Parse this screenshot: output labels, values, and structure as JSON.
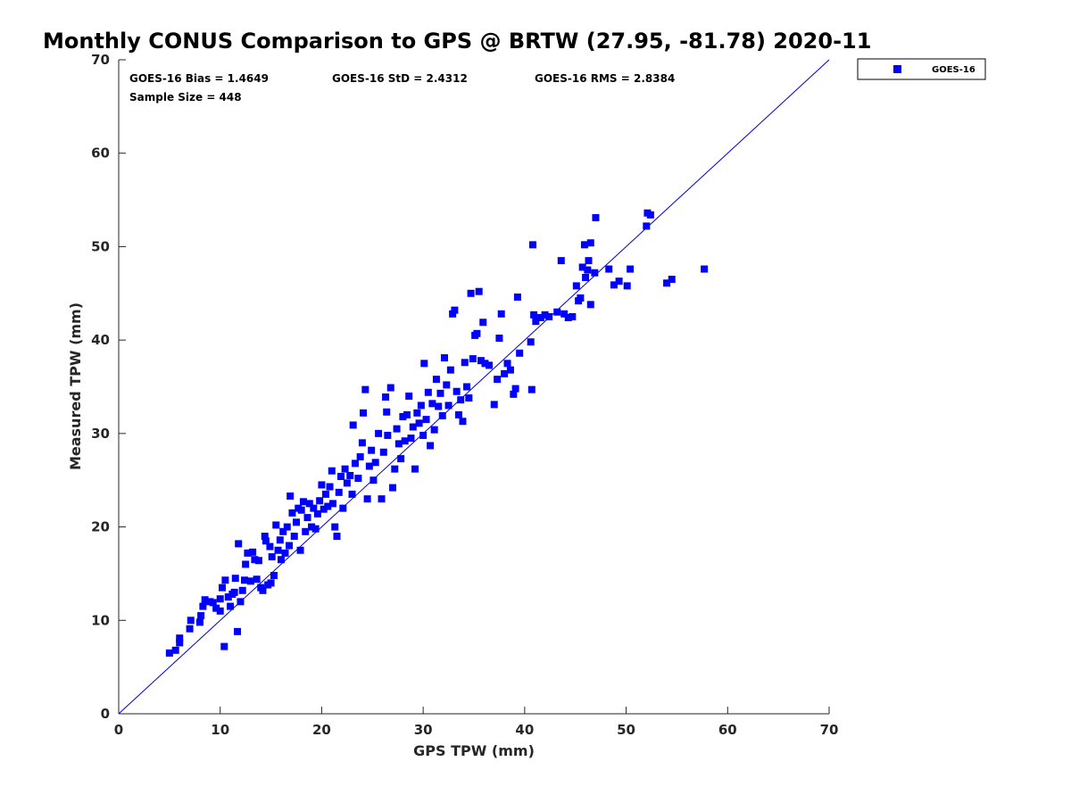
{
  "chart_data": {
    "type": "scatter",
    "title": "Monthly CONUS Comparison to GPS @ BRTW (27.95, -81.78) 2020-11",
    "xlabel": "GPS TPW (mm)",
    "ylabel": "Measured TPW (mm)",
    "xlim": [
      0,
      70
    ],
    "ylim": [
      0,
      70
    ],
    "xticks": [
      "0",
      "10",
      "20",
      "30",
      "40",
      "50",
      "60",
      "70"
    ],
    "yticks": [
      "0",
      "10",
      "20",
      "30",
      "40",
      "50",
      "60",
      "70"
    ],
    "grid": false,
    "legend_position": "outside-top-right",
    "reference_line": {
      "type": "one-to-one",
      "from": [
        0,
        0
      ],
      "to": [
        70,
        70
      ],
      "color": "#0000cc"
    },
    "stats": {
      "bias": "GOES-16 Bias = 1.4649",
      "std": "GOES-16 StD = 2.4312",
      "rms": "GOES-16 RMS = 2.8384",
      "sample_size": "Sample Size = 448"
    },
    "series": [
      {
        "name": "GOES-16",
        "color": "#0000ff",
        "marker": "square",
        "points": [
          [
            5.0,
            6.5
          ],
          [
            5.6,
            6.8
          ],
          [
            6.0,
            7.6
          ],
          [
            6.0,
            8.1
          ],
          [
            7.0,
            9.1
          ],
          [
            7.1,
            10.0
          ],
          [
            8.0,
            9.8
          ],
          [
            8.1,
            10.5
          ],
          [
            8.3,
            11.5
          ],
          [
            8.5,
            12.2
          ],
          [
            9.0,
            12.0
          ],
          [
            9.3,
            11.9
          ],
          [
            9.6,
            11.3
          ],
          [
            10.0,
            11.0
          ],
          [
            10.0,
            12.3
          ],
          [
            10.2,
            13.5
          ],
          [
            10.4,
            7.2
          ],
          [
            10.5,
            14.3
          ],
          [
            10.8,
            12.5
          ],
          [
            11.0,
            11.5
          ],
          [
            11.2,
            12.8
          ],
          [
            11.4,
            13.0
          ],
          [
            11.5,
            14.5
          ],
          [
            11.7,
            8.8
          ],
          [
            11.8,
            18.2
          ],
          [
            12.0,
            12.0
          ],
          [
            12.2,
            13.2
          ],
          [
            12.4,
            14.3
          ],
          [
            12.5,
            16.0
          ],
          [
            12.7,
            17.2
          ],
          [
            13.0,
            14.2
          ],
          [
            13.2,
            17.3
          ],
          [
            13.4,
            16.5
          ],
          [
            13.6,
            14.4
          ],
          [
            13.8,
            16.4
          ],
          [
            14.0,
            13.5
          ],
          [
            14.2,
            13.2
          ],
          [
            14.4,
            19.0
          ],
          [
            14.5,
            18.5
          ],
          [
            14.7,
            13.8
          ],
          [
            14.9,
            17.9
          ],
          [
            15.0,
            14.0
          ],
          [
            15.1,
            16.8
          ],
          [
            15.3,
            14.8
          ],
          [
            15.5,
            20.2
          ],
          [
            15.7,
            17.5
          ],
          [
            15.9,
            18.6
          ],
          [
            16.0,
            16.5
          ],
          [
            16.2,
            19.5
          ],
          [
            16.4,
            17.2
          ],
          [
            16.6,
            20.0
          ],
          [
            16.8,
            18.0
          ],
          [
            16.9,
            23.3
          ],
          [
            17.1,
            21.5
          ],
          [
            17.3,
            19.0
          ],
          [
            17.5,
            20.5
          ],
          [
            17.7,
            22.0
          ],
          [
            17.9,
            17.5
          ],
          [
            18.0,
            21.8
          ],
          [
            18.2,
            22.7
          ],
          [
            18.4,
            19.5
          ],
          [
            18.6,
            21.0
          ],
          [
            18.8,
            22.5
          ],
          [
            19.0,
            20.0
          ],
          [
            19.2,
            22.0
          ],
          [
            19.4,
            19.8
          ],
          [
            19.6,
            21.4
          ],
          [
            19.8,
            22.8
          ],
          [
            20.0,
            24.5
          ],
          [
            20.2,
            21.9
          ],
          [
            20.4,
            23.5
          ],
          [
            20.6,
            22.2
          ],
          [
            20.8,
            24.3
          ],
          [
            21.0,
            26.0
          ],
          [
            21.1,
            22.5
          ],
          [
            21.3,
            20.0
          ],
          [
            21.5,
            19.0
          ],
          [
            21.7,
            23.7
          ],
          [
            21.9,
            25.4
          ],
          [
            22.1,
            22.0
          ],
          [
            22.3,
            26.2
          ],
          [
            22.5,
            24.7
          ],
          [
            22.8,
            25.5
          ],
          [
            23.0,
            23.5
          ],
          [
            23.1,
            30.9
          ],
          [
            23.3,
            26.8
          ],
          [
            23.6,
            25.2
          ],
          [
            23.8,
            27.5
          ],
          [
            24.0,
            29.0
          ],
          [
            24.1,
            32.2
          ],
          [
            24.3,
            34.7
          ],
          [
            24.5,
            23.0
          ],
          [
            24.7,
            26.5
          ],
          [
            24.9,
            28.2
          ],
          [
            25.1,
            25.0
          ],
          [
            25.3,
            26.9
          ],
          [
            25.6,
            30.0
          ],
          [
            25.9,
            23.0
          ],
          [
            26.1,
            28.0
          ],
          [
            26.3,
            33.9
          ],
          [
            26.4,
            32.3
          ],
          [
            26.5,
            29.8
          ],
          [
            26.8,
            34.9
          ],
          [
            27.0,
            24.2
          ],
          [
            27.2,
            26.2
          ],
          [
            27.4,
            30.5
          ],
          [
            27.6,
            28.9
          ],
          [
            27.8,
            27.3
          ],
          [
            28.0,
            31.8
          ],
          [
            28.2,
            29.2
          ],
          [
            28.4,
            32.0
          ],
          [
            28.6,
            34.0
          ],
          [
            28.8,
            29.5
          ],
          [
            29.0,
            30.7
          ],
          [
            29.2,
            26.2
          ],
          [
            29.4,
            32.2
          ],
          [
            29.6,
            31.1
          ],
          [
            29.8,
            33.0
          ],
          [
            30.0,
            29.8
          ],
          [
            30.1,
            37.5
          ],
          [
            30.3,
            31.5
          ],
          [
            30.5,
            34.4
          ],
          [
            30.7,
            28.7
          ],
          [
            30.9,
            33.2
          ],
          [
            31.1,
            30.4
          ],
          [
            31.3,
            35.8
          ],
          [
            31.5,
            32.9
          ],
          [
            31.7,
            34.3
          ],
          [
            31.9,
            31.9
          ],
          [
            32.1,
            38.1
          ],
          [
            32.3,
            35.2
          ],
          [
            32.5,
            33.0
          ],
          [
            32.7,
            36.8
          ],
          [
            32.9,
            42.8
          ],
          [
            33.1,
            43.2
          ],
          [
            33.3,
            34.5
          ],
          [
            33.5,
            32.0
          ],
          [
            33.7,
            33.6
          ],
          [
            33.9,
            31.3
          ],
          [
            34.1,
            37.6
          ],
          [
            34.3,
            35.0
          ],
          [
            34.5,
            33.8
          ],
          [
            34.7,
            45.0
          ],
          [
            34.9,
            38.0
          ],
          [
            35.1,
            40.5
          ],
          [
            35.3,
            40.7
          ],
          [
            35.5,
            45.2
          ],
          [
            35.7,
            37.8
          ],
          [
            35.9,
            41.9
          ],
          [
            36.1,
            37.5
          ],
          [
            36.5,
            37.3
          ],
          [
            37.0,
            33.1
          ],
          [
            37.3,
            35.8
          ],
          [
            37.5,
            40.2
          ],
          [
            37.7,
            42.8
          ],
          [
            38.0,
            36.4
          ],
          [
            38.3,
            37.5
          ],
          [
            38.6,
            36.8
          ],
          [
            38.9,
            34.2
          ],
          [
            39.1,
            34.8
          ],
          [
            39.3,
            44.6
          ],
          [
            39.5,
            38.6
          ],
          [
            40.6,
            39.8
          ],
          [
            40.7,
            34.7
          ],
          [
            40.8,
            50.2
          ],
          [
            40.9,
            42.7
          ],
          [
            41.1,
            42.0
          ],
          [
            41.6,
            42.4
          ],
          [
            42.0,
            42.7
          ],
          [
            42.4,
            42.5
          ],
          [
            43.2,
            43.0
          ],
          [
            43.6,
            48.5
          ],
          [
            43.9,
            42.8
          ],
          [
            44.3,
            42.4
          ],
          [
            44.7,
            42.5
          ],
          [
            45.1,
            45.8
          ],
          [
            45.3,
            44.2
          ],
          [
            45.5,
            44.5
          ],
          [
            45.7,
            47.8
          ],
          [
            45.9,
            50.2
          ],
          [
            46.0,
            46.7
          ],
          [
            46.2,
            47.5
          ],
          [
            46.3,
            48.5
          ],
          [
            46.5,
            50.4
          ],
          [
            46.5,
            43.8
          ],
          [
            46.9,
            47.2
          ],
          [
            47.0,
            53.1
          ],
          [
            48.3,
            47.6
          ],
          [
            48.8,
            45.9
          ],
          [
            49.3,
            46.3
          ],
          [
            50.1,
            45.8
          ],
          [
            50.4,
            47.6
          ],
          [
            52.0,
            52.2
          ],
          [
            52.1,
            53.6
          ],
          [
            52.4,
            53.4
          ],
          [
            54.0,
            46.1
          ],
          [
            54.5,
            46.5
          ],
          [
            57.7,
            47.6
          ]
        ]
      }
    ]
  }
}
